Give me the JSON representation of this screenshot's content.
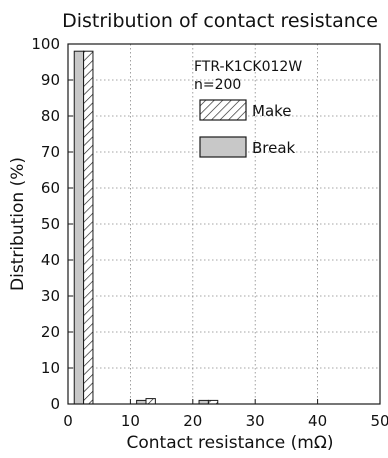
{
  "chart_data": {
    "type": "bar",
    "title": "Distribution of contact resistance",
    "xlabel": "Contact resistance (mΩ)",
    "ylabel": "Distribution (%)",
    "xlim": [
      0,
      50
    ],
    "ylim": [
      0,
      100
    ],
    "xticks": [
      "0",
      "10",
      "20",
      "30",
      "40",
      "50"
    ],
    "yticks": [
      "0",
      "10",
      "20",
      "30",
      "40",
      "50",
      "60",
      "70",
      "80",
      "90",
      "100"
    ],
    "grid": true,
    "bin_width": 5,
    "annotation": [
      "FTR-K1CK012W",
      "n=200"
    ],
    "legend": [
      "Make",
      "Break"
    ],
    "legend_position": "top-right",
    "series": [
      {
        "name": "Make",
        "style": "hatched",
        "bins": [
          {
            "x0": 0,
            "x1": 5,
            "value": 98
          },
          {
            "x0": 10,
            "x1": 15,
            "value": 1.5
          },
          {
            "x0": 20,
            "x1": 25,
            "value": 1
          }
        ]
      },
      {
        "name": "Break",
        "style": "gray",
        "bins": [
          {
            "x0": 0,
            "x1": 5,
            "value": 98
          },
          {
            "x0": 10,
            "x1": 15,
            "value": 1
          },
          {
            "x0": 20,
            "x1": 25,
            "value": 1
          }
        ]
      }
    ],
    "colors": {
      "break_fill": "#c8c8c8",
      "make_fill": "#ffffff",
      "stroke": "#1a1a1a",
      "grid": "#888888"
    }
  }
}
